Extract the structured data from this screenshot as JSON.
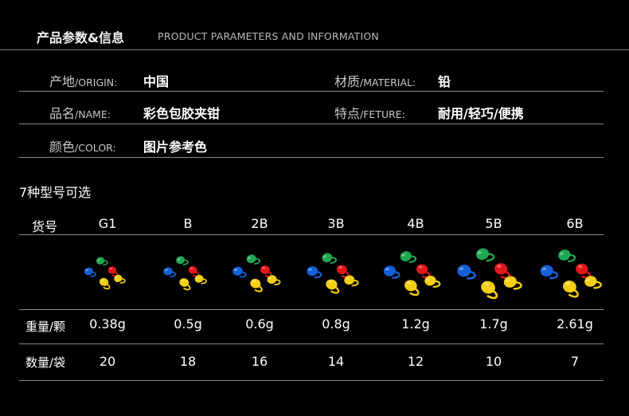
{
  "header": {
    "title_cn": "产品参数&信息",
    "title_en": "PRODUCT PARAMETERS AND INFORMATION"
  },
  "info": {
    "origin": {
      "label_cn": "产地",
      "label_en": "/ORIGIN:",
      "value": "中国"
    },
    "material": {
      "label_cn": "材质",
      "label_en": "/MATERIAL:",
      "value": "铅"
    },
    "name": {
      "label_cn": "品名",
      "label_en": "/NAME:",
      "value": "彩色包胶夹钳"
    },
    "feature": {
      "label_cn": "特点",
      "label_en": "/FETURE:",
      "value": "耐用/轻巧/便携"
    },
    "color": {
      "label_cn": "颜色",
      "label_en": "/COLOR:",
      "value": "图片参考色"
    }
  },
  "models_title": "7种型号可选",
  "table": {
    "header_label": "货号",
    "weight_label": "重量/颗",
    "count_label": "数量/袋",
    "models": [
      {
        "name": "G1",
        "weight": "0.38g",
        "count": "20",
        "scale": 0.74
      },
      {
        "name": "B",
        "weight": "0.5g",
        "count": "18",
        "scale": 0.78
      },
      {
        "name": "2B",
        "weight": "0.6g",
        "count": "16",
        "scale": 0.86
      },
      {
        "name": "3B",
        "weight": "0.8g",
        "count": "14",
        "scale": 0.93
      },
      {
        "name": "4B",
        "weight": "1.2g",
        "count": "12",
        "scale": 1.02
      },
      {
        "name": "5B",
        "weight": "1.7g",
        "count": "10",
        "scale": 1.16
      },
      {
        "name": "6B",
        "weight": "2.61g",
        "count": "7",
        "scale": 1.1
      }
    ]
  },
  "colors": {
    "green": "#1fa651",
    "red": "#e2161d",
    "blue": "#1560d8",
    "yellow": "#f4cf14"
  }
}
